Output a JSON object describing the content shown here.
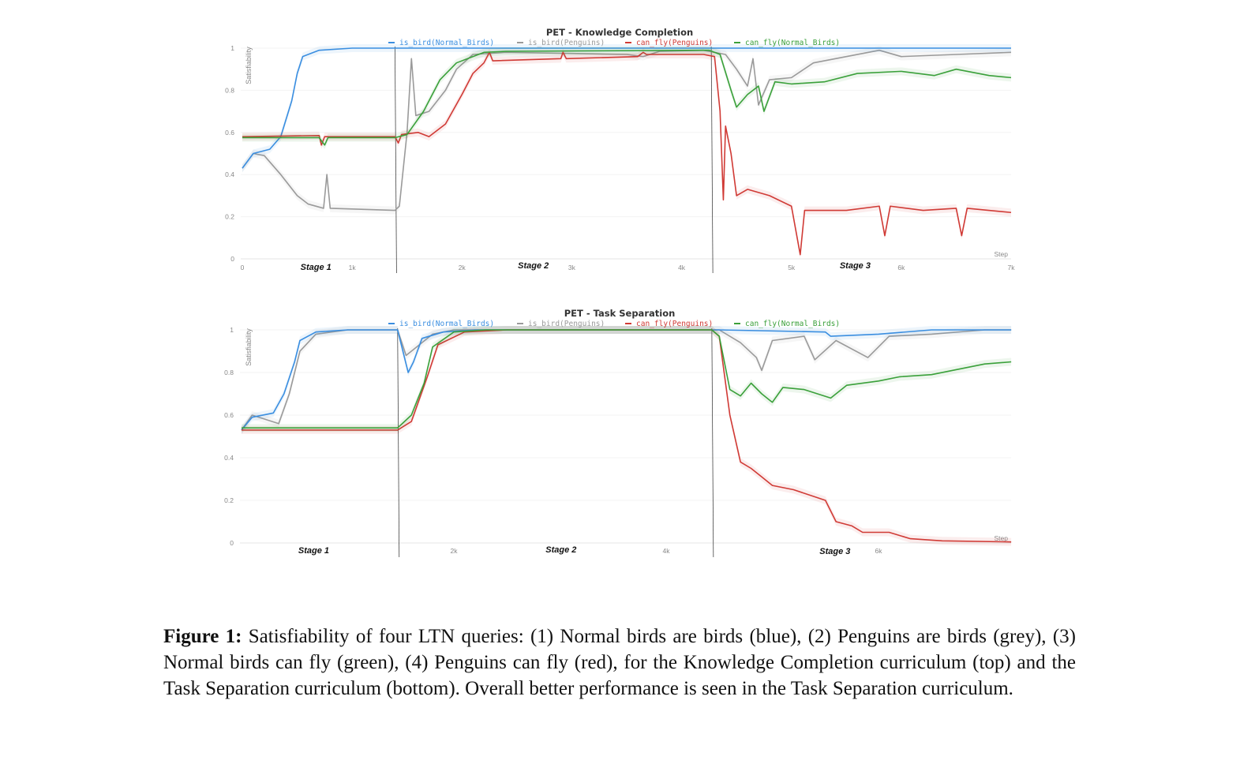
{
  "colors": {
    "blue": "#3a8ee0",
    "grey": "#9a9a9a",
    "red": "#d03a35",
    "green": "#3aa03a"
  },
  "caption": {
    "label": "Figure 1:",
    "text": " Satisfiability of four LTN queries: (1) Normal birds are birds (blue), (2) Penguins are birds (grey), (3) Normal birds can fly (green), (4) Penguins can fly (red), for the Knowledge Completion curriculum (top) and the Task Separation curriculum (bottom).  Overall better performance is seen in the Task Separation curriculum."
  },
  "chart_data": [
    {
      "type": "line",
      "title": "PET - Knowledge Completion",
      "ylabel": "Satisfiability",
      "xlabel": "Step",
      "xlim": [
        0,
        7000
      ],
      "ylim": [
        0,
        1
      ],
      "yticks": [
        "0",
        "0.2",
        "0.4",
        "0.6",
        "0.8",
        "1"
      ],
      "xticks": [
        {
          "v": 0,
          "label": "0"
        },
        {
          "v": 1000,
          "label": "1k"
        },
        {
          "v": 2000,
          "label": "2k"
        },
        {
          "v": 3000,
          "label": "3k"
        },
        {
          "v": 4000,
          "label": "4k"
        },
        {
          "v": 5000,
          "label": "5k"
        },
        {
          "v": 6000,
          "label": "6k"
        },
        {
          "v": 7000,
          "label": "7k"
        }
      ],
      "stages": [
        {
          "label": "Stage 1",
          "at": 670
        },
        {
          "label": "Stage 2",
          "at": 2650
        },
        {
          "label": "Stage 3",
          "at": 5580
        }
      ],
      "stage_boundaries": [
        1390,
        4270
      ],
      "legend_placement": "top",
      "series": [
        {
          "name": "is_bird(Normal_Birds)",
          "color": "blue",
          "points": [
            [
              0,
              0.43
            ],
            [
              100,
              0.5
            ],
            [
              250,
              0.52
            ],
            [
              350,
              0.58
            ],
            [
              450,
              0.75
            ],
            [
              500,
              0.88
            ],
            [
              550,
              0.96
            ],
            [
              700,
              0.99
            ],
            [
              1000,
              1
            ],
            [
              7000,
              1
            ]
          ]
        },
        {
          "name": "is_bird(Penguins)",
          "color": "grey",
          "points": [
            [
              0,
              0.43
            ],
            [
              100,
              0.5
            ],
            [
              200,
              0.49
            ],
            [
              350,
              0.4
            ],
            [
              500,
              0.3
            ],
            [
              600,
              0.26
            ],
            [
              740,
              0.24
            ],
            [
              770,
              0.4
            ],
            [
              800,
              0.24
            ],
            [
              1390,
              0.23
            ],
            [
              1430,
              0.25
            ],
            [
              1500,
              0.6
            ],
            [
              1540,
              0.95
            ],
            [
              1580,
              0.68
            ],
            [
              1700,
              0.7
            ],
            [
              1850,
              0.8
            ],
            [
              1950,
              0.9
            ],
            [
              2100,
              0.97
            ],
            [
              2400,
              0.98
            ],
            [
              3000,
              0.975
            ],
            [
              3500,
              0.97
            ],
            [
              3650,
              0.96
            ],
            [
              3800,
              0.985
            ],
            [
              4200,
              0.99
            ],
            [
              4400,
              0.97
            ],
            [
              4500,
              0.9
            ],
            [
              4600,
              0.82
            ],
            [
              4650,
              0.95
            ],
            [
              4700,
              0.73
            ],
            [
              4800,
              0.85
            ],
            [
              5000,
              0.86
            ],
            [
              5200,
              0.93
            ],
            [
              5500,
              0.96
            ],
            [
              5800,
              0.99
            ],
            [
              6000,
              0.96
            ],
            [
              6500,
              0.97
            ],
            [
              7000,
              0.98
            ]
          ]
        },
        {
          "name": "can_fly(Penguins)",
          "color": "red",
          "points": [
            [
              0,
              0.58
            ],
            [
              700,
              0.585
            ],
            [
              720,
              0.54
            ],
            [
              750,
              0.58
            ],
            [
              1390,
              0.58
            ],
            [
              1420,
              0.55
            ],
            [
              1450,
              0.59
            ],
            [
              1600,
              0.6
            ],
            [
              1700,
              0.58
            ],
            [
              1850,
              0.64
            ],
            [
              2000,
              0.78
            ],
            [
              2100,
              0.88
            ],
            [
              2200,
              0.93
            ],
            [
              2250,
              0.98
            ],
            [
              2280,
              0.94
            ],
            [
              2900,
              0.95
            ],
            [
              2920,
              0.98
            ],
            [
              2950,
              0.95
            ],
            [
              3600,
              0.96
            ],
            [
              3650,
              0.98
            ],
            [
              3680,
              0.97
            ],
            [
              4200,
              0.97
            ],
            [
              4300,
              0.96
            ],
            [
              4350,
              0.7
            ],
            [
              4380,
              0.28
            ],
            [
              4400,
              0.63
            ],
            [
              4450,
              0.5
            ],
            [
              4500,
              0.3
            ],
            [
              4600,
              0.33
            ],
            [
              4800,
              0.3
            ],
            [
              5000,
              0.25
            ],
            [
              5080,
              0.02
            ],
            [
              5120,
              0.23
            ],
            [
              5500,
              0.23
            ],
            [
              5800,
              0.25
            ],
            [
              5850,
              0.11
            ],
            [
              5900,
              0.25
            ],
            [
              6200,
              0.23
            ],
            [
              6500,
              0.24
            ],
            [
              6550,
              0.11
            ],
            [
              6600,
              0.24
            ],
            [
              7000,
              0.22
            ]
          ]
        },
        {
          "name": "can_fly(Normal_Birds)",
          "color": "green",
          "points": [
            [
              0,
              0.575
            ],
            [
              700,
              0.575
            ],
            [
              750,
              0.54
            ],
            [
              780,
              0.575
            ],
            [
              1390,
              0.575
            ],
            [
              1500,
              0.59
            ],
            [
              1650,
              0.7
            ],
            [
              1800,
              0.85
            ],
            [
              1950,
              0.93
            ],
            [
              2200,
              0.98
            ],
            [
              2400,
              0.985
            ],
            [
              4250,
              0.99
            ],
            [
              4350,
              0.97
            ],
            [
              4450,
              0.8
            ],
            [
              4500,
              0.72
            ],
            [
              4600,
              0.78
            ],
            [
              4700,
              0.82
            ],
            [
              4750,
              0.7
            ],
            [
              4850,
              0.84
            ],
            [
              5000,
              0.83
            ],
            [
              5300,
              0.84
            ],
            [
              5600,
              0.88
            ],
            [
              6000,
              0.89
            ],
            [
              6300,
              0.87
            ],
            [
              6500,
              0.9
            ],
            [
              6800,
              0.87
            ],
            [
              7000,
              0.86
            ]
          ]
        }
      ]
    },
    {
      "type": "line",
      "title": "PET - Task Separation",
      "ylabel": "Satisfiability",
      "xlabel": "Step",
      "xlim": [
        0,
        7250
      ],
      "ylim": [
        0,
        1
      ],
      "yticks": [
        "0",
        "0.2",
        "0.4",
        "0.6",
        "0.8",
        "1"
      ],
      "xticks": [
        {
          "v": 2000,
          "label": "2k"
        },
        {
          "v": 4000,
          "label": "4k"
        },
        {
          "v": 6000,
          "label": "6k"
        }
      ],
      "stages": [
        {
          "label": "Stage 1",
          "at": 680
        },
        {
          "label": "Stage 2",
          "at": 3010
        },
        {
          "label": "Stage 3",
          "at": 5590
        }
      ],
      "stage_boundaries": [
        1470,
        4430
      ],
      "legend_placement": "top",
      "series": [
        {
          "name": "is_bird(Normal_Birds)",
          "color": "blue",
          "points": [
            [
              0,
              0.53
            ],
            [
              100,
              0.59
            ],
            [
              300,
              0.61
            ],
            [
              400,
              0.7
            ],
            [
              500,
              0.85
            ],
            [
              550,
              0.95
            ],
            [
              700,
              0.99
            ],
            [
              1000,
              1
            ],
            [
              1470,
              1
            ],
            [
              1520,
              0.9
            ],
            [
              1570,
              0.8
            ],
            [
              1620,
              0.85
            ],
            [
              1700,
              0.96
            ],
            [
              1900,
              0.99
            ],
            [
              2200,
              1
            ],
            [
              4500,
              1
            ],
            [
              5500,
              0.99
            ],
            [
              5550,
              0.97
            ],
            [
              6000,
              0.98
            ],
            [
              6500,
              1
            ],
            [
              7250,
              1
            ]
          ]
        },
        {
          "name": "is_bird(Penguins)",
          "color": "grey",
          "points": [
            [
              0,
              0.53
            ],
            [
              100,
              0.6
            ],
            [
              350,
              0.56
            ],
            [
              450,
              0.7
            ],
            [
              550,
              0.9
            ],
            [
              700,
              0.98
            ],
            [
              1000,
              1
            ],
            [
              1470,
              1
            ],
            [
              1550,
              0.88
            ],
            [
              1650,
              0.92
            ],
            [
              1800,
              0.98
            ],
            [
              2000,
              1
            ],
            [
              4500,
              1
            ],
            [
              4700,
              0.94
            ],
            [
              4850,
              0.87
            ],
            [
              4900,
              0.81
            ],
            [
              5000,
              0.95
            ],
            [
              5300,
              0.97
            ],
            [
              5400,
              0.86
            ],
            [
              5600,
              0.95
            ],
            [
              5900,
              0.87
            ],
            [
              6100,
              0.97
            ],
            [
              6500,
              0.98
            ],
            [
              7000,
              1
            ],
            [
              7250,
              1
            ]
          ]
        },
        {
          "name": "can_fly(Penguins)",
          "color": "red",
          "points": [
            [
              0,
              0.53
            ],
            [
              1470,
              0.53
            ],
            [
              1600,
              0.57
            ],
            [
              1750,
              0.78
            ],
            [
              1850,
              0.93
            ],
            [
              2100,
              0.99
            ],
            [
              2500,
              1
            ],
            [
              4430,
              1
            ],
            [
              4500,
              0.97
            ],
            [
              4600,
              0.6
            ],
            [
              4700,
              0.38
            ],
            [
              4800,
              0.35
            ],
            [
              4900,
              0.31
            ],
            [
              5000,
              0.27
            ],
            [
              5200,
              0.25
            ],
            [
              5500,
              0.2
            ],
            [
              5600,
              0.1
            ],
            [
              5750,
              0.08
            ],
            [
              5850,
              0.05
            ],
            [
              6100,
              0.05
            ],
            [
              6300,
              0.02
            ],
            [
              6600,
              0.01
            ],
            [
              7250,
              0.005
            ]
          ]
        },
        {
          "name": "can_fly(Normal_Birds)",
          "color": "green",
          "points": [
            [
              0,
              0.54
            ],
            [
              1470,
              0.54
            ],
            [
              1600,
              0.6
            ],
            [
              1720,
              0.75
            ],
            [
              1800,
              0.92
            ],
            [
              2000,
              0.99
            ],
            [
              2300,
              1
            ],
            [
              4430,
              1
            ],
            [
              4500,
              0.97
            ],
            [
              4600,
              0.72
            ],
            [
              4700,
              0.69
            ],
            [
              4800,
              0.75
            ],
            [
              4900,
              0.7
            ],
            [
              5000,
              0.66
            ],
            [
              5100,
              0.73
            ],
            [
              5300,
              0.72
            ],
            [
              5550,
              0.68
            ],
            [
              5700,
              0.74
            ],
            [
              6000,
              0.76
            ],
            [
              6200,
              0.78
            ],
            [
              6500,
              0.79
            ],
            [
              7000,
              0.84
            ],
            [
              7250,
              0.85
            ]
          ]
        }
      ]
    }
  ]
}
